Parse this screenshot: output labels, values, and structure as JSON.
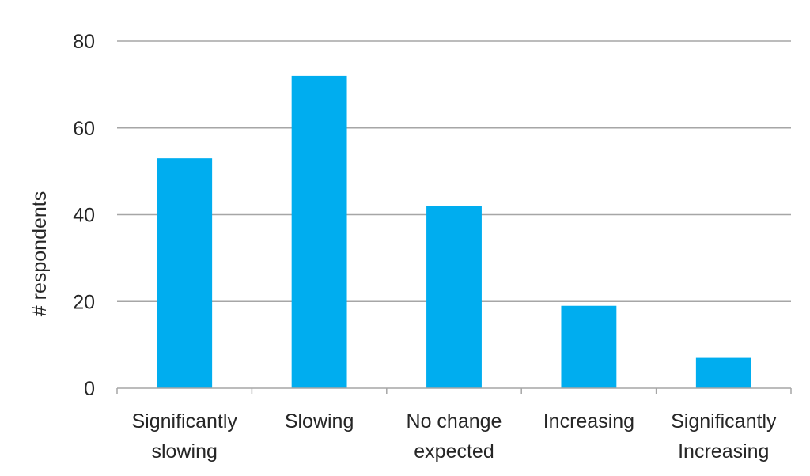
{
  "chart_data": {
    "type": "bar",
    "title": "",
    "xlabel": "",
    "ylabel": "# respondents",
    "ylim": [
      0,
      80
    ],
    "yticks": [
      0,
      20,
      40,
      60,
      80
    ],
    "grid": true,
    "categories": [
      [
        "Significantly",
        "slowing"
      ],
      [
        "Slowing"
      ],
      [
        "No change",
        "expected"
      ],
      [
        "Increasing"
      ],
      [
        "Significantly",
        "Increasing"
      ]
    ],
    "values": [
      53,
      72,
      42,
      19,
      7
    ],
    "bar_color": "#00ADEF",
    "grid_color": "#A6A6A6"
  }
}
